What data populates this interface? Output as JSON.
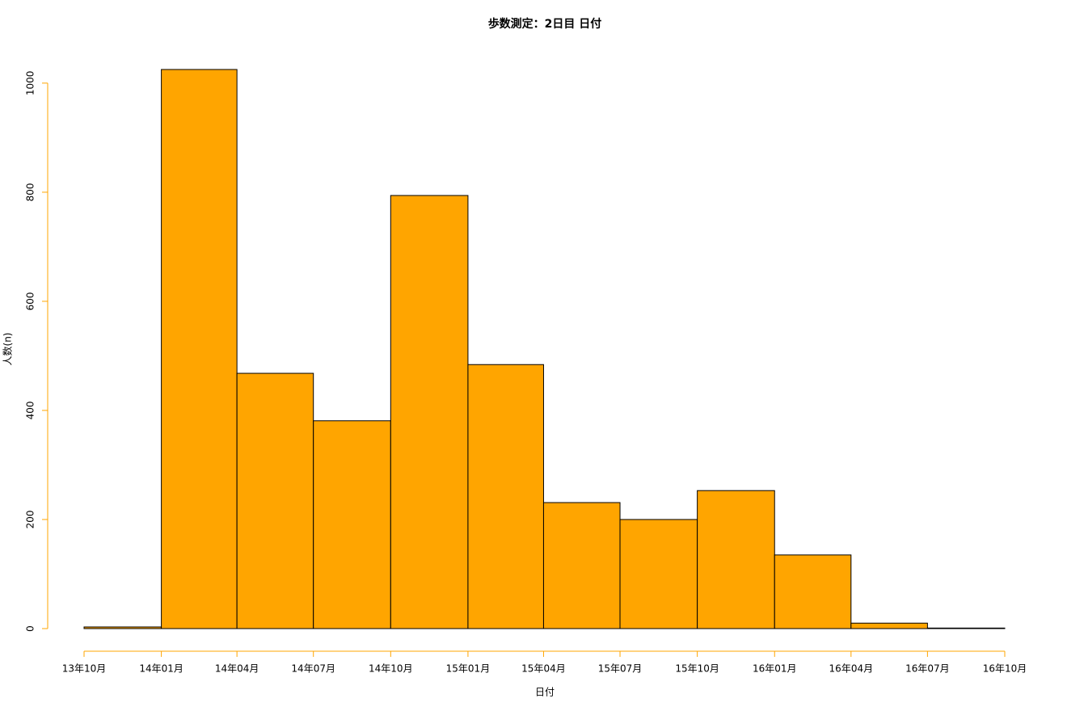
{
  "chart_data": {
    "type": "histogram",
    "title": "歩数測定：2日目 日付",
    "x_label": "日付",
    "y_label": "人数(n)",
    "bins": [
      "13年10月",
      "14年01月",
      "14年04月",
      "14年07月",
      "14年10月",
      "15年01月",
      "15年04月",
      "15年07月",
      "15年10月",
      "16年01月",
      "16年04月",
      "16年07月",
      "16年10月"
    ],
    "values": [
      3,
      1025,
      468,
      381,
      794,
      484,
      231,
      200,
      253,
      135,
      10,
      1
    ],
    "color": "#ffa500",
    "axis_color": "#ffa500",
    "ylim": [
      0,
      1025
    ],
    "yticks": [
      0,
      200,
      400,
      600,
      800,
      1000
    ]
  }
}
